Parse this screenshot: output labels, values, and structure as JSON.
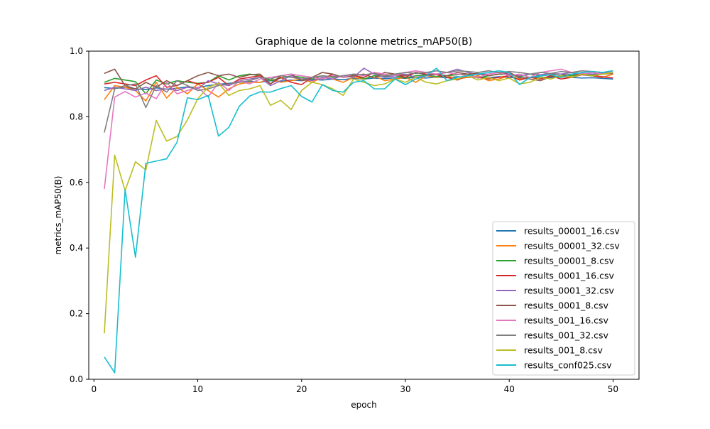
{
  "chart_data": {
    "type": "line",
    "title": "Graphique de la colonne metrics_mAP50(B)",
    "xlabel": "epoch",
    "ylabel": "metrics_mAP50(B)",
    "xlim": [
      -0.5,
      52.5
    ],
    "ylim": [
      0.0,
      1.0
    ],
    "xticks": [
      0,
      10,
      20,
      30,
      40,
      50
    ],
    "yticks": [
      0.0,
      0.2,
      0.4,
      0.6,
      0.8,
      1.0
    ],
    "xtick_labels": [
      "0",
      "10",
      "20",
      "30",
      "40",
      "50"
    ],
    "ytick_labels": [
      "0.0",
      "0.2",
      "0.4",
      "0.6",
      "0.8",
      "1.0"
    ],
    "grid": false,
    "legend_position": "lower right",
    "x": [
      1,
      2,
      3,
      4,
      5,
      6,
      7,
      8,
      9,
      10,
      11,
      12,
      13,
      14,
      15,
      16,
      17,
      18,
      19,
      20,
      21,
      22,
      23,
      24,
      25,
      26,
      27,
      28,
      29,
      30,
      31,
      32,
      33,
      34,
      35,
      36,
      37,
      38,
      39,
      40,
      41,
      42,
      43,
      44,
      45,
      46,
      47,
      48,
      49,
      50
    ],
    "series": [
      {
        "name": "results_00001_16.csv",
        "color": "#1f77b4",
        "values": [
          0.889,
          0.886,
          0.89,
          0.885,
          0.883,
          0.888,
          0.884,
          0.887,
          0.891,
          0.889,
          0.895,
          0.899,
          0.902,
          0.905,
          0.908,
          0.905,
          0.91,
          0.908,
          0.912,
          0.91,
          0.914,
          0.912,
          0.915,
          0.913,
          0.917,
          0.915,
          0.918,
          0.916,
          0.919,
          0.917,
          0.92,
          0.918,
          0.921,
          0.919,
          0.922,
          0.92,
          0.921,
          0.919,
          0.922,
          0.92,
          0.918,
          0.92,
          0.921,
          0.919,
          0.922,
          0.92,
          0.918,
          0.919,
          0.917,
          0.915
        ]
      },
      {
        "name": "results_00001_32.csv",
        "color": "#ff7f0e",
        "values": [
          0.852,
          0.895,
          0.89,
          0.88,
          0.848,
          0.905,
          0.857,
          0.89,
          0.87,
          0.9,
          0.88,
          0.86,
          0.885,
          0.9,
          0.905,
          0.905,
          0.915,
          0.905,
          0.91,
          0.915,
          0.905,
          0.92,
          0.915,
          0.905,
          0.92,
          0.915,
          0.925,
          0.91,
          0.915,
          0.92,
          0.905,
          0.925,
          0.92,
          0.925,
          0.915,
          0.92,
          0.925,
          0.91,
          0.915,
          0.925,
          0.915,
          0.92,
          0.915,
          0.925,
          0.92,
          0.925,
          0.93,
          0.925,
          0.92,
          0.93
        ]
      },
      {
        "name": "results_00001_8.csv",
        "color": "#2ca02c",
        "values": [
          0.905,
          0.917,
          0.912,
          0.907,
          0.87,
          0.912,
          0.9,
          0.91,
          0.905,
          0.902,
          0.905,
          0.925,
          0.912,
          0.925,
          0.93,
          0.925,
          0.91,
          0.918,
          0.925,
          0.92,
          0.915,
          0.925,
          0.92,
          0.925,
          0.928,
          0.915,
          0.925,
          0.922,
          0.925,
          0.918,
          0.925,
          0.928,
          0.922,
          0.925,
          0.928,
          0.93,
          0.918,
          0.925,
          0.93,
          0.928,
          0.922,
          0.93,
          0.925,
          0.928,
          0.93,
          0.925,
          0.93,
          0.928,
          0.932,
          0.935
        ]
      },
      {
        "name": "results_0001_16.csv",
        "color": "#d62728",
        "values": [
          0.9,
          0.905,
          0.9,
          0.895,
          0.912,
          0.925,
          0.89,
          0.895,
          0.91,
          0.9,
          0.905,
          0.92,
          0.895,
          0.915,
          0.92,
          0.925,
          0.9,
          0.92,
          0.905,
          0.898,
          0.92,
          0.915,
          0.93,
          0.92,
          0.925,
          0.92,
          0.935,
          0.925,
          0.93,
          0.92,
          0.935,
          0.93,
          0.928,
          0.92,
          0.912,
          0.925,
          0.92,
          0.915,
          0.92,
          0.925,
          0.912,
          0.92,
          0.915,
          0.925,
          0.915,
          0.92,
          0.928,
          0.925,
          0.922,
          0.918
        ]
      },
      {
        "name": "results_0001_32.csv",
        "color": "#9467bd",
        "values": [
          0.88,
          0.89,
          0.885,
          0.88,
          0.89,
          0.88,
          0.885,
          0.88,
          0.89,
          0.885,
          0.91,
          0.9,
          0.895,
          0.91,
          0.915,
          0.92,
          0.895,
          0.91,
          0.925,
          0.915,
          0.91,
          0.92,
          0.915,
          0.925,
          0.92,
          0.948,
          0.93,
          0.92,
          0.925,
          0.93,
          0.92,
          0.925,
          0.93,
          0.935,
          0.945,
          0.935,
          0.928,
          0.93,
          0.935,
          0.93,
          0.925,
          0.93,
          0.928,
          0.932,
          0.93,
          0.935,
          0.932,
          0.93,
          0.933,
          0.935
        ]
      },
      {
        "name": "results_0001_8.csv",
        "color": "#8c564b",
        "values": [
          0.932,
          0.945,
          0.895,
          0.885,
          0.905,
          0.89,
          0.91,
          0.895,
          0.91,
          0.925,
          0.935,
          0.925,
          0.93,
          0.92,
          0.928,
          0.93,
          0.9,
          0.925,
          0.93,
          0.91,
          0.92,
          0.935,
          0.93,
          0.92,
          0.925,
          0.93,
          0.918,
          0.935,
          0.93,
          0.925,
          0.935,
          0.928,
          0.93,
          0.925,
          0.935,
          0.93,
          0.932,
          0.925,
          0.93,
          0.935,
          0.92,
          0.915,
          0.91,
          0.922,
          0.925,
          0.93,
          0.928,
          0.925,
          0.93,
          0.932
        ]
      },
      {
        "name": "results_001_16.csv",
        "color": "#e377c2",
        "values": [
          0.58,
          0.86,
          0.877,
          0.86,
          0.872,
          0.855,
          0.905,
          0.87,
          0.88,
          0.89,
          0.86,
          0.905,
          0.88,
          0.91,
          0.9,
          0.915,
          0.92,
          0.925,
          0.93,
          0.925,
          0.92,
          0.915,
          0.925,
          0.92,
          0.93,
          0.925,
          0.935,
          0.93,
          0.925,
          0.935,
          0.94,
          0.935,
          0.93,
          0.935,
          0.93,
          0.925,
          0.92,
          0.93,
          0.935,
          0.925,
          0.93,
          0.92,
          0.935,
          0.94,
          0.945,
          0.935,
          0.93,
          0.935,
          0.93,
          0.935
        ]
      },
      {
        "name": "results_001_32.csv",
        "color": "#7f7f7f",
        "values": [
          0.752,
          0.885,
          0.895,
          0.9,
          0.828,
          0.895,
          0.875,
          0.91,
          0.895,
          0.88,
          0.885,
          0.895,
          0.9,
          0.905,
          0.91,
          0.92,
          0.915,
          0.925,
          0.92,
          0.915,
          0.92,
          0.925,
          0.922,
          0.925,
          0.93,
          0.928,
          0.932,
          0.925,
          0.93,
          0.935,
          0.932,
          0.935,
          0.94,
          0.935,
          0.94,
          0.938,
          0.935,
          0.94,
          0.935,
          0.938,
          0.935,
          0.93,
          0.935,
          0.932,
          0.938,
          0.935,
          0.94,
          0.938,
          0.935,
          0.94
        ]
      },
      {
        "name": "results_001_8.csv",
        "color": "#bcbd22",
        "values": [
          0.14,
          0.683,
          0.575,
          0.663,
          0.638,
          0.789,
          0.726,
          0.74,
          0.79,
          0.855,
          0.89,
          0.902,
          0.865,
          0.88,
          0.885,
          0.895,
          0.835,
          0.85,
          0.822,
          0.88,
          0.905,
          0.898,
          0.885,
          0.865,
          0.915,
          0.905,
          0.895,
          0.9,
          0.915,
          0.905,
          0.92,
          0.905,
          0.9,
          0.91,
          0.915,
          0.925,
          0.912,
          0.92,
          0.91,
          0.918,
          0.9,
          0.905,
          0.92,
          0.915,
          0.925,
          0.92,
          0.93,
          0.925,
          0.93,
          0.935
        ]
      },
      {
        "name": "results_conf025.csv",
        "color": "#17becf",
        "values": [
          0.068,
          0.02,
          0.578,
          0.372,
          0.658,
          0.665,
          0.672,
          0.722,
          0.858,
          0.852,
          0.865,
          0.741,
          0.768,
          0.832,
          0.863,
          0.876,
          0.875,
          0.886,
          0.895,
          0.862,
          0.845,
          0.898,
          0.88,
          0.875,
          0.905,
          0.91,
          0.885,
          0.885,
          0.915,
          0.898,
          0.915,
          0.925,
          0.948,
          0.91,
          0.92,
          0.925,
          0.93,
          0.935,
          0.94,
          0.935,
          0.898,
          0.92,
          0.925,
          0.928,
          0.92,
          0.93,
          0.935,
          0.938,
          0.935,
          0.94
        ]
      }
    ]
  }
}
